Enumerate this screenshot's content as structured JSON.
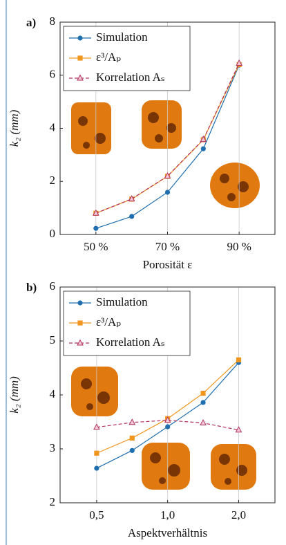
{
  "chart_data": [
    {
      "type": "line",
      "panel_label": "a)",
      "xlabel": "Porosität ε",
      "ylabel": "k₂ (mm)",
      "x": [
        50,
        60,
        70,
        80,
        90
      ],
      "xlim": [
        40,
        100
      ],
      "xticks": [
        {
          "value": 50,
          "label": "50 %"
        },
        {
          "value": 70,
          "label": "70 %"
        },
        {
          "value": 90,
          "label": "90 %"
        }
      ],
      "ylim": [
        0,
        8
      ],
      "yticks": [
        0,
        2,
        4,
        6,
        8
      ],
      "grid": "x",
      "legend": "upper left",
      "series": [
        {
          "name": "Simulation",
          "color": "#1f6fb0",
          "marker": "circle",
          "linestyle": "solid",
          "values": [
            0.23,
            0.68,
            1.59,
            3.23,
            6.38
          ]
        },
        {
          "name": "ε³/Aₚ",
          "color": "#f0961e",
          "marker": "square",
          "linestyle": "solid",
          "values": [
            0.8,
            1.33,
            2.19,
            3.57,
            6.4
          ]
        },
        {
          "name": "Korrelation Aₛ",
          "color": "#b0305a",
          "marker": "triangle",
          "linestyle": "dashed",
          "values": [
            0.8,
            1.34,
            2.2,
            3.58,
            6.45
          ]
        }
      ]
    },
    {
      "type": "line",
      "panel_label": "b)",
      "xlabel": "Aspektverhältnis",
      "ylabel": "k₂ (mm)",
      "x": [
        0.5,
        0.707,
        1,
        1.414,
        2
      ],
      "xscale": "log",
      "xlim": [
        0.35,
        2.85
      ],
      "xticks": [
        {
          "value": 0.5,
          "label": "0,5"
        },
        {
          "value": 1,
          "label": "1,0"
        },
        {
          "value": 2,
          "label": "2,0"
        }
      ],
      "ylim": [
        2,
        6
      ],
      "yticks": [
        2,
        3,
        4,
        5,
        6
      ],
      "grid": "x",
      "legend": "upper left",
      "series": [
        {
          "name": "Simulation",
          "color": "#1f6fb0",
          "marker": "circle",
          "linestyle": "solid",
          "values": [
            2.64,
            2.97,
            3.41,
            3.86,
            4.6
          ]
        },
        {
          "name": "ε³/Aₚ",
          "color": "#f0961e",
          "marker": "square",
          "linestyle": "solid",
          "values": [
            2.92,
            3.2,
            3.56,
            4.03,
            4.65
          ]
        },
        {
          "name": "Korrelation Aₛ",
          "color": "#b0305a",
          "marker": "triangle",
          "linestyle": "dashed",
          "values": [
            3.4,
            3.49,
            3.53,
            3.48,
            3.35
          ]
        }
      ]
    }
  ]
}
